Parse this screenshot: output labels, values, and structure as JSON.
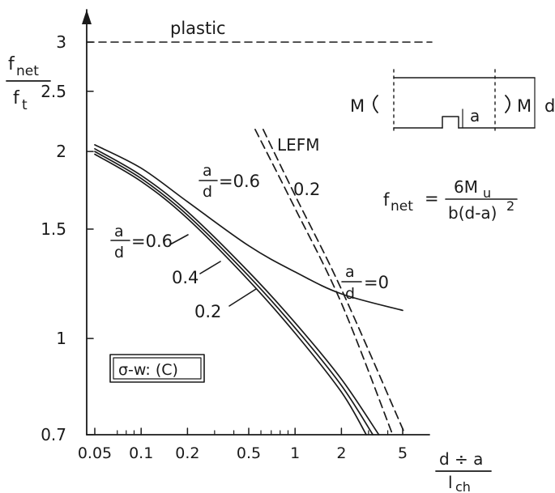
{
  "chart_data": {
    "type": "line",
    "xscale": "log",
    "yscale": "log",
    "xlim": [
      0.045,
      6
    ],
    "ylim": [
      0.7,
      3.3
    ],
    "x_ticks": [
      "0.05",
      "0.1",
      "0.2",
      "0.5",
      "1",
      "2",
      "5"
    ],
    "y_ticks": [
      "0.7",
      "1",
      "1.5",
      "2",
      "2.5",
      "3"
    ],
    "ylabel": {
      "num": "f",
      "num_sub": "net",
      "den": "f",
      "den_sub": "t"
    },
    "xlabel": {
      "num": "d ÷ a",
      "den": "l",
      "den_sub": "ch"
    },
    "plastic": {
      "label": "plastic",
      "y": 3
    },
    "series": [
      {
        "key": "a0",
        "points": [
          [
            0.05,
            2.05
          ],
          [
            0.1,
            1.88
          ],
          [
            0.2,
            1.66
          ],
          [
            0.5,
            1.41
          ],
          [
            1,
            1.28
          ],
          [
            2,
            1.18
          ],
          [
            5,
            1.11
          ]
        ]
      },
      {
        "key": "c06",
        "points": [
          [
            0.05,
            2.02
          ],
          [
            0.1,
            1.83
          ],
          [
            0.2,
            1.6
          ],
          [
            0.5,
            1.28
          ],
          [
            1,
            1.06
          ],
          [
            2,
            0.86
          ],
          [
            3.5,
            0.7
          ]
        ]
      },
      {
        "key": "c04",
        "points": [
          [
            0.05,
            2.0
          ],
          [
            0.1,
            1.81
          ],
          [
            0.2,
            1.58
          ],
          [
            0.5,
            1.26
          ],
          [
            1,
            1.04
          ],
          [
            2,
            0.84
          ],
          [
            3.2,
            0.7
          ]
        ]
      },
      {
        "key": "c02",
        "points": [
          [
            0.05,
            1.98
          ],
          [
            0.1,
            1.79
          ],
          [
            0.2,
            1.56
          ],
          [
            0.5,
            1.24
          ],
          [
            1,
            1.02
          ],
          [
            2,
            0.82
          ],
          [
            2.9,
            0.7
          ]
        ]
      },
      {
        "key": "l06",
        "dashed": true,
        "points": [
          [
            0.62,
            2.17
          ],
          [
            1,
            1.7
          ],
          [
            2,
            1.2
          ],
          [
            5.2,
            0.7
          ]
        ]
      },
      {
        "key": "l02",
        "dashed": true,
        "points": [
          [
            0.55,
            2.17
          ],
          [
            1,
            1.62
          ],
          [
            2,
            1.14
          ],
          [
            4.3,
            0.7
          ]
        ]
      }
    ],
    "annotations": {
      "a0": {
        "frac_num": "a",
        "frac_den": "d",
        "eq": "=0"
      },
      "c06": {
        "frac_num": "a",
        "frac_den": "d",
        "eq": "=0.6"
      },
      "c04": {
        "text": "0.4"
      },
      "c02": {
        "text": "0.2"
      },
      "lefm": {
        "text": "LEFM"
      },
      "l06": {
        "frac_num": "a",
        "frac_den": "d",
        "eq": "=0.6"
      },
      "l02": {
        "text": "0.2"
      },
      "model": {
        "text": "σ-w: (C)"
      }
    },
    "inset": {
      "left_moment": "M",
      "right_moment": "M",
      "notch": "a",
      "depth": "d",
      "formula": {
        "lhs": "f",
        "lhs_sub": "net",
        "eq": "=",
        "num": "6M",
        "num_sub": "u",
        "den": "b(d-a)",
        "den_sup": "2"
      }
    }
  }
}
